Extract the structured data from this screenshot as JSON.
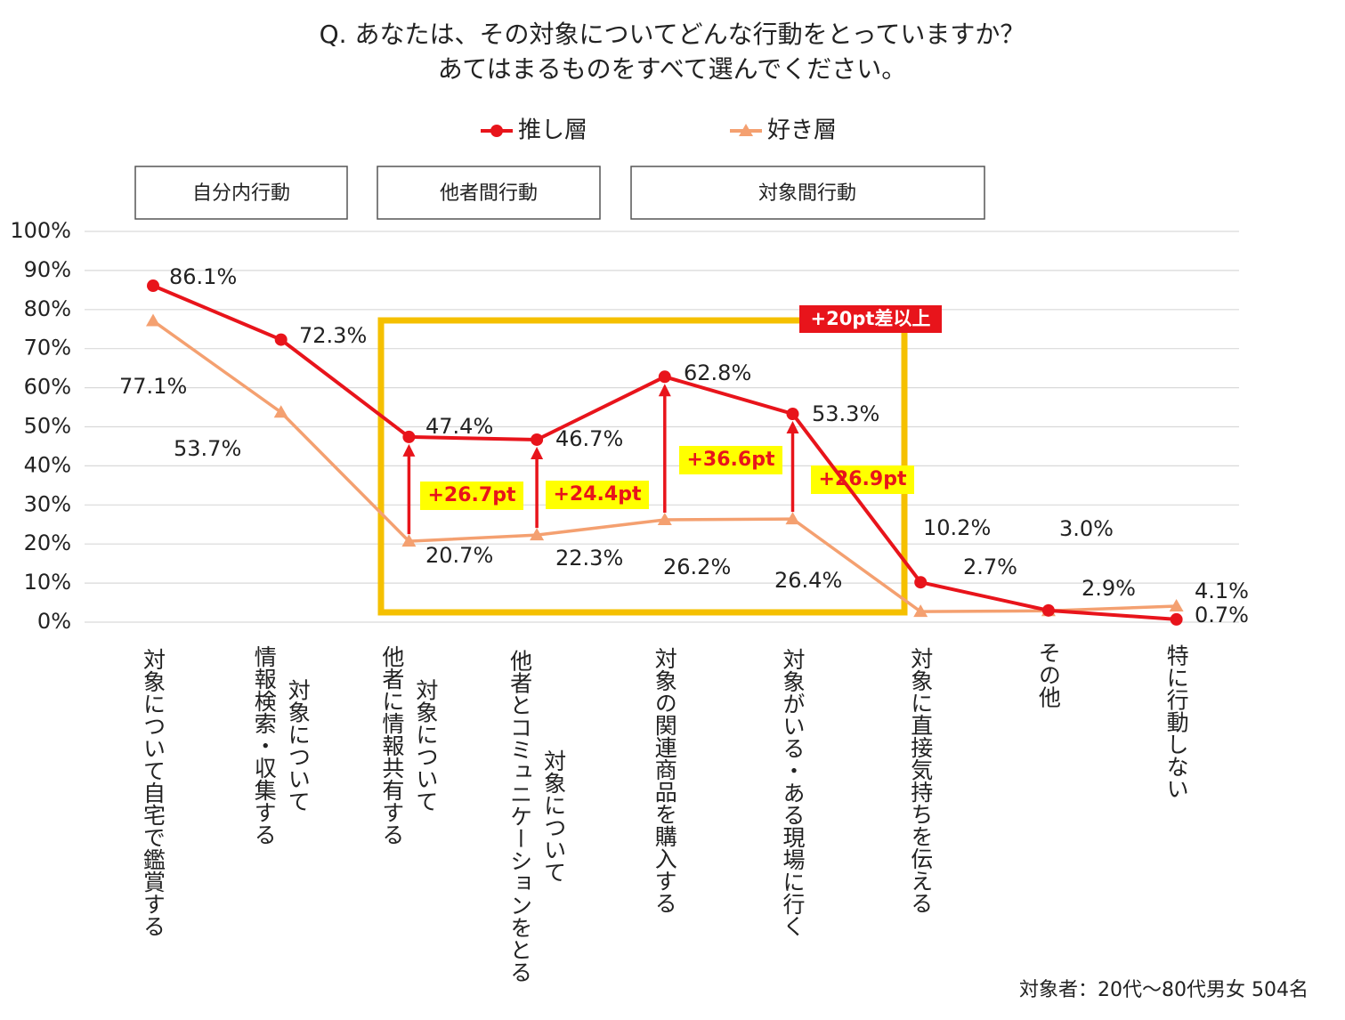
{
  "chart_data": {
    "type": "line",
    "title": [
      "Q. あなたは、その対象についてどんな行動をとっていますか？",
      "あてはまるものをすべて選んでください。"
    ],
    "categories": [
      [
        "対象について自宅で鑑賞する"
      ],
      [
        "対象について",
        "情報検索・収集する"
      ],
      [
        "対象について",
        "他者に情報共有する"
      ],
      [
        "対象について",
        "他者とコミュニケーションをとる"
      ],
      [
        "対象の関連商品を購入する"
      ],
      [
        "対象がいる・ある現場に行く"
      ],
      [
        "対象に直接気持ちを伝える"
      ],
      [
        "その他"
      ],
      [
        "特に行動しない"
      ]
    ],
    "series": [
      {
        "name": "推し層",
        "color": "#e8141b",
        "marker": "circle",
        "values": [
          86.1,
          72.3,
          47.4,
          46.7,
          62.8,
          53.3,
          10.2,
          3.0,
          0.7
        ],
        "value_labels": [
          "86.1%",
          "72.3%",
          "47.4%",
          "46.7%",
          "62.8%",
          "53.3%",
          "10.2%",
          "3.0%",
          "0.7%"
        ]
      },
      {
        "name": "好き層",
        "color": "#f4a070",
        "marker": "triangle",
        "values": [
          77.1,
          53.7,
          20.7,
          22.3,
          26.2,
          26.4,
          2.7,
          2.9,
          4.1
        ],
        "value_labels": [
          "77.1%",
          "53.7%",
          "20.7%",
          "22.3%",
          "26.2%",
          "26.4%",
          "2.7%",
          "2.9%",
          "4.1%"
        ]
      }
    ],
    "ylim": [
      0,
      100
    ],
    "yticks": [
      {
        "value": 0,
        "label": "0%"
      },
      {
        "value": 10,
        "label": "10%"
      },
      {
        "value": 20,
        "label": "20%"
      },
      {
        "value": 30,
        "label": "30%"
      },
      {
        "value": 40,
        "label": "40%"
      },
      {
        "value": 50,
        "label": "50%"
      },
      {
        "value": 60,
        "label": "60%"
      },
      {
        "value": 70,
        "label": "70%"
      },
      {
        "value": 80,
        "label": "80%"
      },
      {
        "value": 90,
        "label": "90%"
      },
      {
        "value": 100,
        "label": "100%"
      }
    ],
    "grid": true,
    "groups": [
      "自分内行動",
      "他者間行動",
      "対象間行動"
    ],
    "highlight_label": "+20pt差以上",
    "differences": [
      {
        "value": 26.7,
        "label": "+26.7pt"
      },
      {
        "value": 24.4,
        "label": "+24.4pt"
      },
      {
        "value": 36.6,
        "label": "+36.6pt"
      },
      {
        "value": 26.9,
        "label": "+26.9pt"
      }
    ],
    "footnote": "対象者：20代～80代男女 504名"
  }
}
